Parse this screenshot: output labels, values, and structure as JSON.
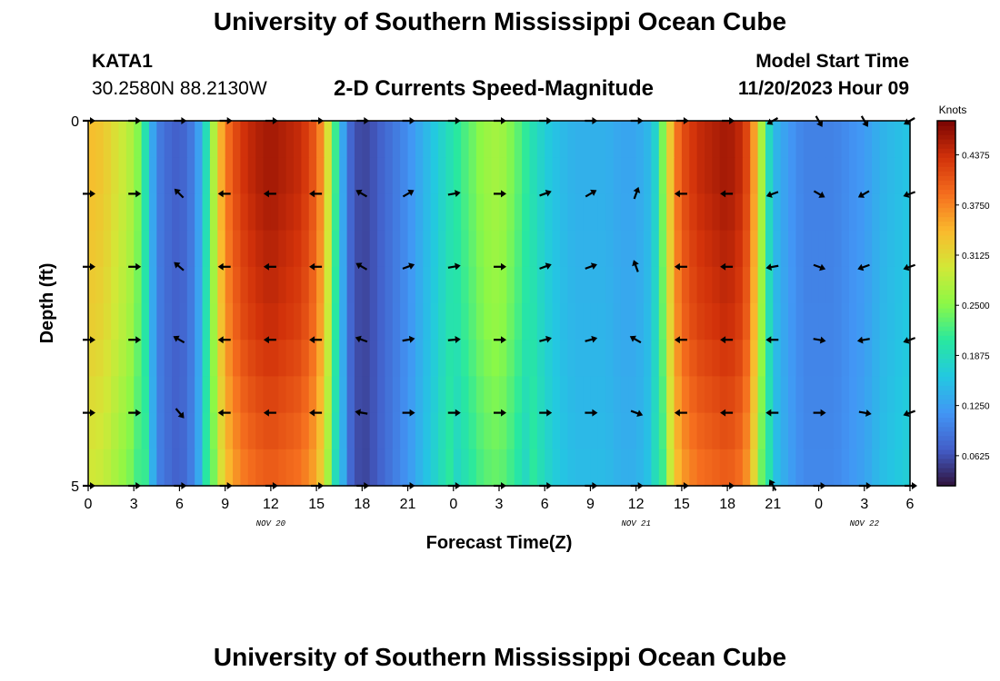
{
  "header": {
    "title": "University of Southern Mississippi Ocean Cube",
    "station": "KATA1",
    "coords": "30.2580N  88.2130W",
    "subtitle": "2-D Currents Speed-Magnitude",
    "model_label": "Model Start Time",
    "model_time": "11/20/2023 Hour 09"
  },
  "footer": {
    "title": "University of Southern Mississippi Ocean Cube"
  },
  "chart_data": {
    "type": "heatmap",
    "title": "2-D Currents Speed-Magnitude",
    "xlabel": "Forecast Time(Z)",
    "ylabel": "Depth (ft)",
    "x_unit": "hours since 11/20 00Z",
    "xlim": [
      0,
      54
    ],
    "ylim": [
      0,
      5
    ],
    "x_ticks": [
      {
        "t": 0,
        "label": "0"
      },
      {
        "t": 3,
        "label": "3"
      },
      {
        "t": 6,
        "label": "6"
      },
      {
        "t": 9,
        "label": "9"
      },
      {
        "t": 12,
        "label": "12"
      },
      {
        "t": 15,
        "label": "15"
      },
      {
        "t": 18,
        "label": "18"
      },
      {
        "t": 21,
        "label": "21"
      },
      {
        "t": 24,
        "label": "0"
      },
      {
        "t": 27,
        "label": "3"
      },
      {
        "t": 30,
        "label": "6"
      },
      {
        "t": 33,
        "label": "9"
      },
      {
        "t": 36,
        "label": "12"
      },
      {
        "t": 39,
        "label": "15"
      },
      {
        "t": 42,
        "label": "18"
      },
      {
        "t": 45,
        "label": "21"
      },
      {
        "t": 48,
        "label": "0"
      },
      {
        "t": 51,
        "label": "3"
      },
      {
        "t": 54,
        "label": "6"
      }
    ],
    "date_labels": [
      {
        "t": 12,
        "label": "NOV 20"
      },
      {
        "t": 36,
        "label": "NOV 21"
      },
      {
        "t": 51,
        "label": "NOV 22"
      }
    ],
    "y_ticks": [
      {
        "v": 0,
        "label": "0"
      },
      {
        "v": 5,
        "label": "5"
      }
    ],
    "colorbar": {
      "title": "Knots",
      "min": 0.025,
      "max": 0.48,
      "ticks": [
        "0.0625",
        "0.1250",
        "0.1875",
        "0.2500",
        "0.3125",
        "0.3750",
        "0.4375"
      ]
    },
    "speed_profile": {
      "hours": [
        0,
        1,
        2,
        3,
        3.6,
        4,
        4.5,
        5,
        6,
        7,
        7.5,
        8,
        8.5,
        9,
        10,
        11,
        12,
        13,
        14,
        15,
        15.5,
        16,
        16.5,
        17,
        17.5,
        18,
        18.5,
        19,
        20,
        21,
        22,
        23,
        24,
        25,
        26,
        27,
        28,
        29,
        30,
        31,
        32,
        33,
        34,
        35,
        36,
        37,
        37.5,
        38,
        38.5,
        39,
        40,
        41,
        42,
        43,
        43.5,
        44,
        44.5,
        45,
        46,
        47,
        48,
        49,
        50,
        51,
        52,
        53,
        54
      ],
      "knots": [
        0.34,
        0.33,
        0.3,
        0.27,
        0.22,
        0.16,
        0.1,
        0.085,
        0.07,
        0.1,
        0.15,
        0.23,
        0.32,
        0.38,
        0.43,
        0.45,
        0.46,
        0.45,
        0.44,
        0.4,
        0.35,
        0.26,
        0.17,
        0.09,
        0.065,
        0.055,
        0.06,
        0.07,
        0.09,
        0.11,
        0.14,
        0.17,
        0.2,
        0.23,
        0.26,
        0.27,
        0.24,
        0.2,
        0.17,
        0.15,
        0.14,
        0.14,
        0.14,
        0.13,
        0.13,
        0.15,
        0.2,
        0.29,
        0.37,
        0.41,
        0.44,
        0.45,
        0.46,
        0.44,
        0.4,
        0.32,
        0.22,
        0.15,
        0.12,
        0.1,
        0.1,
        0.1,
        0.11,
        0.12,
        0.14,
        0.15,
        0.16
      ]
    },
    "depth_rows": [
      0.25,
      0.75,
      1.25,
      1.75,
      2.25,
      2.75,
      3.25,
      3.75,
      4.25,
      4.75
    ],
    "depth_factor": [
      1.0,
      1.0,
      0.99,
      0.98,
      0.97,
      0.96,
      0.94,
      0.92,
      0.9,
      0.88
    ],
    "vector_times": [
      0,
      3,
      6,
      9,
      12,
      15,
      18,
      21,
      24,
      27,
      30,
      33,
      36,
      39,
      42,
      45,
      48,
      51,
      54
    ],
    "vector_depths": [
      0,
      1,
      2,
      3,
      4,
      5
    ],
    "vector_directions_deg": [
      [
        0,
        0,
        0,
        0,
        0,
        0,
        0,
        0,
        0,
        0,
        0,
        0,
        0,
        0,
        0,
        210,
        300,
        300,
        210
      ],
      [
        0,
        0,
        135,
        180,
        180,
        180,
        150,
        30,
        10,
        0,
        20,
        30,
        70,
        180,
        180,
        200,
        330,
        210,
        200
      ],
      [
        0,
        0,
        140,
        180,
        180,
        180,
        150,
        20,
        10,
        0,
        20,
        20,
        110,
        180,
        180,
        190,
        340,
        200,
        200
      ],
      [
        0,
        0,
        150,
        180,
        180,
        180,
        160,
        10,
        5,
        0,
        15,
        15,
        150,
        180,
        180,
        180,
        350,
        190,
        200
      ],
      [
        0,
        0,
        310,
        180,
        180,
        180,
        170,
        0,
        0,
        0,
        0,
        0,
        340,
        180,
        180,
        180,
        0,
        350,
        200
      ],
      [
        0,
        0,
        0,
        0,
        0,
        0,
        0,
        0,
        0,
        0,
        0,
        0,
        0,
        0,
        0,
        120,
        0,
        0,
        0
      ]
    ]
  }
}
